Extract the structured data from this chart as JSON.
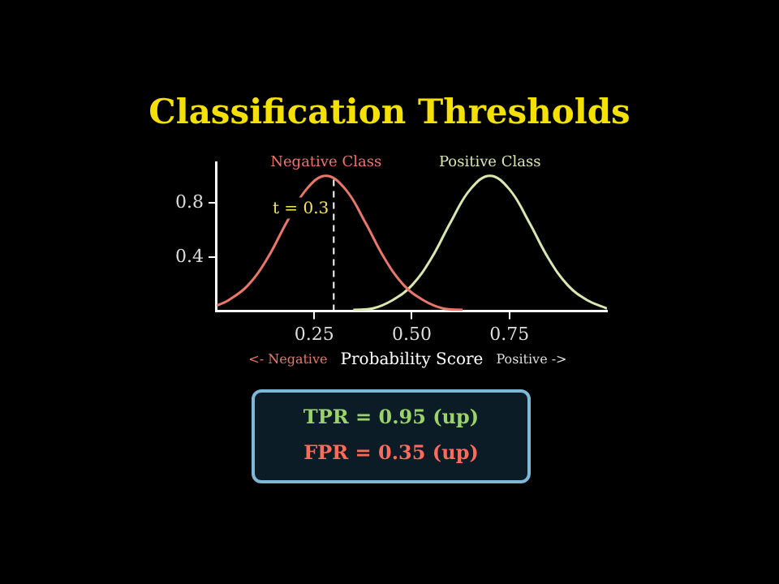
{
  "chart_data": {
    "type": "line",
    "title": "Classification Thresholds",
    "xlabel": "Probability Score",
    "series": [
      {
        "name": "Negative Class",
        "color": "#e8766a",
        "x": [
          0,
          0.03,
          0.08,
          0.13,
          0.18,
          0.23,
          0.28,
          0.33,
          0.38,
          0.43,
          0.48,
          0.53,
          0.58,
          0.63
        ],
        "values": [
          0.04,
          0.08,
          0.19,
          0.39,
          0.66,
          0.9,
          1,
          0.9,
          0.66,
          0.39,
          0.19,
          0.08,
          0.02,
          0.01
        ]
      },
      {
        "name": "Positive Class",
        "color": "#d9e6b0",
        "x": [
          0.35,
          0.4,
          0.45,
          0.5,
          0.55,
          0.6,
          0.65,
          0.7,
          0.75,
          0.8,
          0.85,
          0.9,
          0.95,
          1.0
        ],
        "values": [
          0.01,
          0.02,
          0.08,
          0.19,
          0.39,
          0.66,
          0.9,
          1,
          0.9,
          0.66,
          0.39,
          0.19,
          0.08,
          0.02
        ]
      }
    ],
    "xlim": [
      0,
      1
    ],
    "xticks": [
      0.25,
      {
        "value": 0.5,
        "label": "0.50"
      },
      0.75
    ],
    "ylim": [
      0,
      1.1
    ],
    "yticks": [
      0.4,
      0.8
    ],
    "ref_lines": [
      {
        "axis": "x",
        "value": 0.3,
        "label": "t = 0.3",
        "color": "#ffffff",
        "line_style": "dashed"
      }
    ],
    "annotations": [
      "<- Negative",
      "Positive ->",
      "TPR = 0.95 (up)",
      "FPR = 0.35 (up)"
    ],
    "grid": false,
    "legend": false,
    "marker": "none",
    "line_style": "solid"
  }
}
